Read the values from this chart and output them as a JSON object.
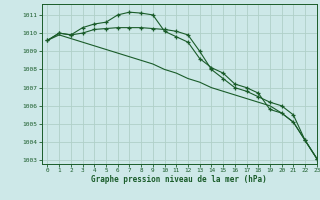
{
  "xlabel": "Graphe pression niveau de la mer (hPa)",
  "background_color": "#cde8e8",
  "grid_color": "#b0d0c8",
  "line_color": "#1a5c2a",
  "xlim": [
    -0.5,
    23
  ],
  "ylim": [
    1002.8,
    1011.6
  ],
  "yticks": [
    1003,
    1004,
    1005,
    1006,
    1007,
    1008,
    1009,
    1010,
    1011
  ],
  "xticks": [
    0,
    1,
    2,
    3,
    4,
    5,
    6,
    7,
    8,
    9,
    10,
    11,
    12,
    13,
    14,
    15,
    16,
    17,
    18,
    19,
    20,
    21,
    22,
    23
  ],
  "series": [
    {
      "x": [
        0,
        1,
        2,
        3,
        4,
        5,
        6,
        7,
        8,
        9,
        10,
        11,
        12,
        13,
        14,
        15,
        16,
        17,
        18,
        19,
        20,
        21,
        22,
        23
      ],
      "y": [
        1009.6,
        1010.0,
        1009.9,
        1010.3,
        1010.5,
        1010.6,
        1011.0,
        1011.15,
        1011.1,
        1011.0,
        1010.1,
        1009.8,
        1009.5,
        1008.6,
        1008.1,
        1007.8,
        1007.2,
        1007.0,
        1006.7,
        1005.8,
        1005.6,
        1005.1,
        1004.1,
        1003.1
      ],
      "marker": true
    },
    {
      "x": [
        0,
        1,
        2,
        3,
        4,
        5,
        6,
        7,
        8,
        9,
        10,
        11,
        12,
        13,
        14,
        15,
        16,
        17,
        18,
        19,
        20,
        21,
        22,
        23
      ],
      "y": [
        1009.6,
        1010.0,
        1009.9,
        1010.0,
        1010.2,
        1010.25,
        1010.3,
        1010.3,
        1010.3,
        1010.25,
        1010.2,
        1010.1,
        1009.9,
        1009.0,
        1008.0,
        1007.5,
        1007.0,
        1006.8,
        1006.5,
        1006.2,
        1006.0,
        1005.5,
        1004.1,
        1003.1
      ],
      "marker": true
    },
    {
      "x": [
        0,
        1,
        2,
        3,
        4,
        5,
        6,
        7,
        8,
        9,
        10,
        11,
        12,
        13,
        14,
        15,
        16,
        17,
        18,
        19,
        20,
        21,
        22,
        23
      ],
      "y": [
        1009.6,
        1009.9,
        1009.7,
        1009.5,
        1009.3,
        1009.1,
        1008.9,
        1008.7,
        1008.5,
        1008.3,
        1008.0,
        1007.8,
        1007.5,
        1007.3,
        1007.0,
        1006.8,
        1006.6,
        1006.4,
        1006.2,
        1006.0,
        1005.6,
        1005.1,
        1004.1,
        1003.1
      ],
      "marker": false
    }
  ]
}
